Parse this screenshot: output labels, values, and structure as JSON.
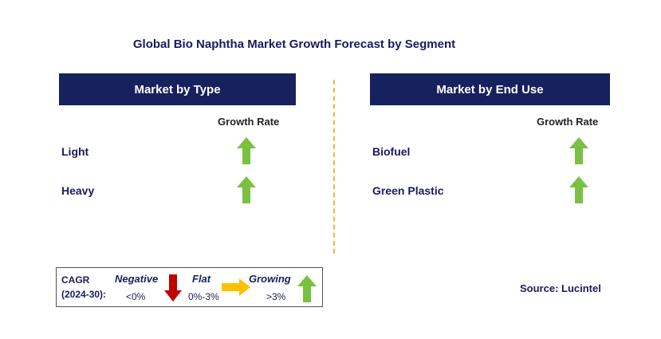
{
  "title": "Global Bio Naphtha Market Growth Forecast by Segment",
  "panels": [
    {
      "header": "Market by Type",
      "column_header": "Growth Rate",
      "rows": [
        {
          "label": "Light",
          "trend": "growing"
        },
        {
          "label": "Heavy",
          "trend": "growing"
        }
      ]
    },
    {
      "header": "Market by End Use",
      "column_header": "Growth Rate",
      "rows": [
        {
          "label": "Biofuel",
          "trend": "growing"
        },
        {
          "label": "Green Plastic",
          "trend": "growing"
        }
      ]
    }
  ],
  "legend": {
    "cagr_label_line1": "CAGR",
    "cagr_label_line2": "(2024-30):",
    "negative": {
      "label": "Negative",
      "range": "<0%",
      "icon": "down-arrow-icon",
      "color": "#c00000"
    },
    "flat": {
      "label": "Flat",
      "range": "0%-3%",
      "icon": "right-arrow-icon",
      "color": "#ffc000"
    },
    "growing": {
      "label": "Growing",
      "range": ">3%",
      "icon": "up-arrow-icon",
      "color": "#7ac143"
    }
  },
  "source": "Source: Lucintel",
  "colors": {
    "header_bg": "#17215e",
    "divider": "#f0b33a",
    "up_arrow": "#7ac143",
    "down_arrow": "#c00000",
    "flat_arrow": "#ffc000"
  }
}
